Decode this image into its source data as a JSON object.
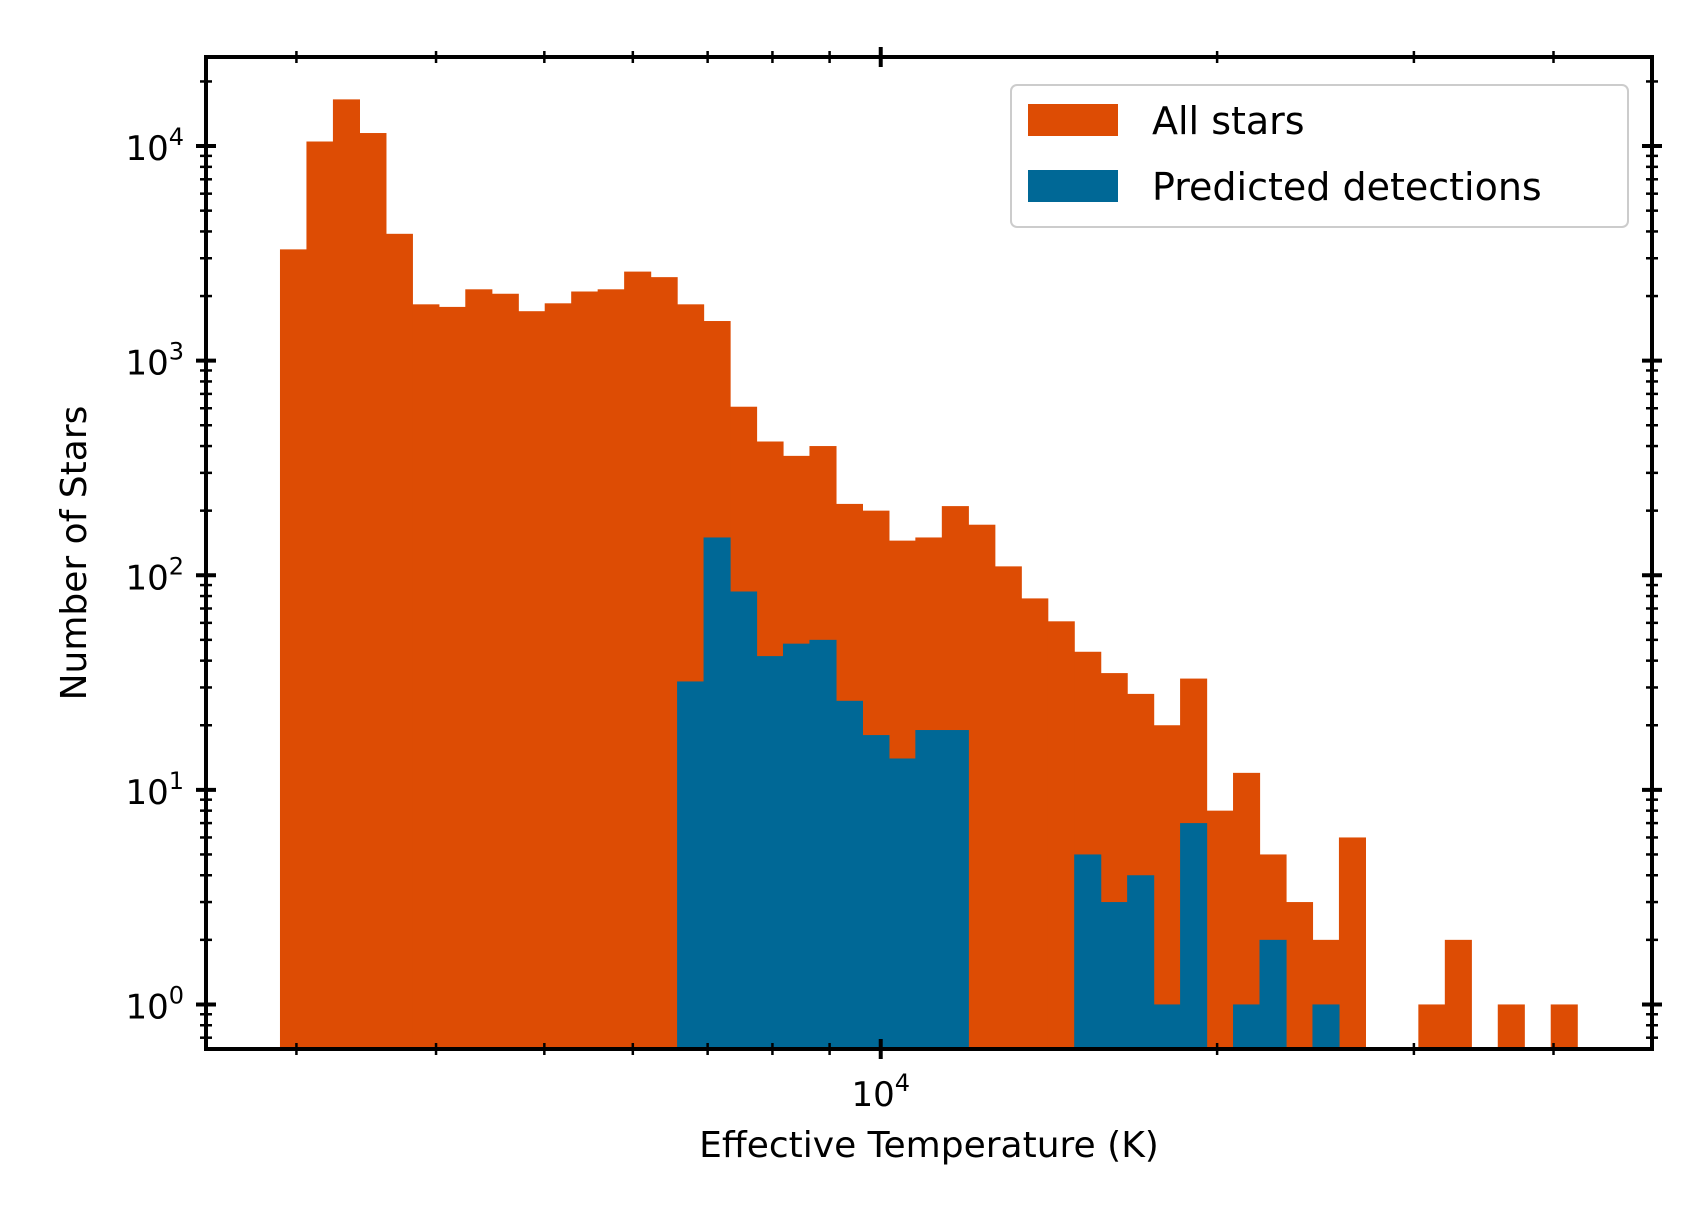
{
  "chart_data": {
    "type": "bar",
    "subtype": "histogram",
    "title": "",
    "xlabel": "Effective Temperature (K)",
    "ylabel": "Number of Stars",
    "x_scale": "log",
    "y_scale": "log",
    "xlim": [
      2490,
      49000
    ],
    "ylim": [
      0.62,
      26000
    ],
    "x_tick_labels": [
      {
        "value": 10000,
        "base": "10",
        "exp": "4"
      }
    ],
    "y_tick_labels": [
      {
        "value": 1,
        "base": "10",
        "exp": "0"
      },
      {
        "value": 10,
        "base": "10",
        "exp": "1"
      },
      {
        "value": 100,
        "base": "10",
        "exp": "2"
      },
      {
        "value": 1000,
        "base": "10",
        "exp": "3"
      },
      {
        "value": 10000,
        "base": "10",
        "exp": "4"
      }
    ],
    "bin_range": [
      2900,
      42000
    ],
    "bin_count": 49,
    "legend_placement": "top-right",
    "series": [
      {
        "name": "All stars",
        "color": "#dd4c04",
        "values": [
          3300,
          10500,
          16500,
          11500,
          3900,
          1830,
          1780,
          2150,
          2050,
          1700,
          1850,
          2100,
          2150,
          2600,
          2450,
          1830,
          1530,
          610,
          420,
          360,
          400,
          215,
          200,
          145,
          150,
          210,
          172,
          110,
          78,
          61,
          44,
          35,
          28,
          20,
          33,
          8,
          12,
          5,
          3,
          2,
          6,
          0,
          0,
          1,
          2,
          0,
          1,
          0,
          1
        ]
      },
      {
        "name": "Predicted detections",
        "color": "#006896",
        "values": [
          0,
          0,
          0,
          0,
          0,
          0,
          0,
          0,
          0,
          0,
          0,
          0,
          0,
          0,
          0,
          32,
          150,
          84,
          42,
          48,
          50,
          26,
          18,
          14,
          19,
          19,
          0,
          0,
          0,
          0,
          5,
          3,
          4,
          1,
          7,
          0,
          1,
          2,
          0,
          1,
          0,
          0,
          0,
          0,
          0,
          0,
          0,
          0,
          0
        ]
      }
    ]
  }
}
